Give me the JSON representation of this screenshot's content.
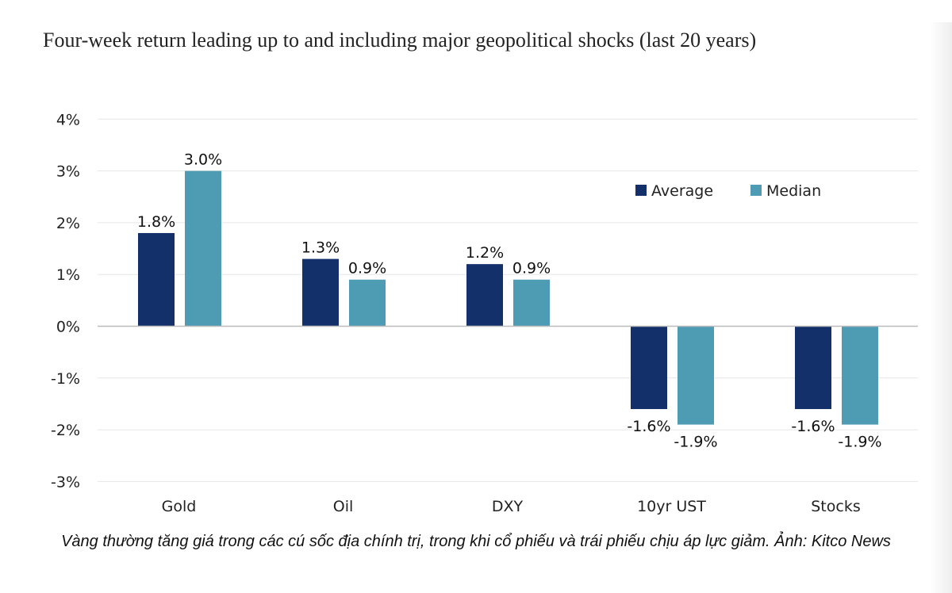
{
  "caption": {
    "text": "Vàng thường tăng giá trong các cú sốc địa chính trị, trong khi cổ phiếu và trái phiếu chịu áp lực giảm. Ảnh: Kitco News"
  },
  "chart_data": {
    "type": "bar",
    "title": "Four-week return leading up to and including major geopolitical shocks (last 20 years)",
    "xlabel": "",
    "ylabel": "",
    "categories": [
      "Gold",
      "Oil",
      "DXY",
      "10yr UST",
      "Stocks"
    ],
    "series": [
      {
        "name": "Average",
        "color": "#13306b",
        "values": [
          1.8,
          1.3,
          1.2,
          -1.6,
          -1.6
        ],
        "labels": [
          "1.8%",
          "1.3%",
          "1.2%",
          "-1.6%",
          "-1.6%"
        ]
      },
      {
        "name": "Median",
        "color": "#4d9cb4",
        "values": [
          3.0,
          0.9,
          0.9,
          -1.9,
          -1.9
        ],
        "labels": [
          "3.0%",
          "0.9%",
          "0.9%",
          "-1.9%",
          "-1.9%"
        ]
      }
    ],
    "ylim": [
      -3,
      4
    ],
    "yticks": [
      4,
      3,
      2,
      1,
      0,
      -1,
      -2,
      -3
    ],
    "ytick_labels": [
      "4%",
      "3%",
      "2%",
      "1%",
      "0%",
      "-1%",
      "-2%",
      "-3%"
    ],
    "grid": true,
    "legend_position": "top-right",
    "grid_color": "#e6e6e6",
    "axis_color": "#bbbbbb"
  }
}
